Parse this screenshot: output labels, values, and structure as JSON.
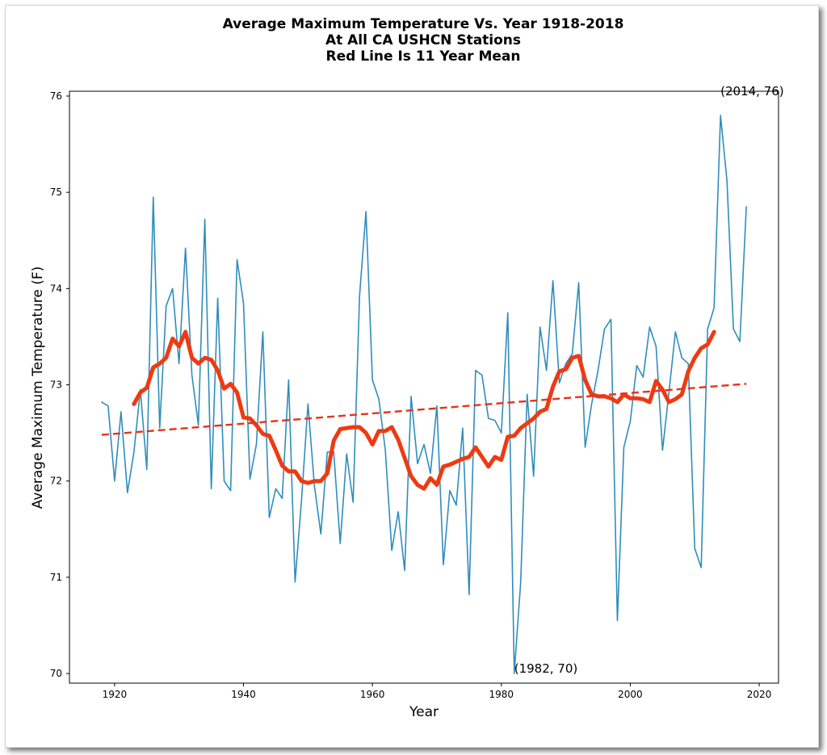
{
  "chart_data": {
    "type": "line",
    "title": [
      "Average Maximum Temperature Vs. Year 1918-2018",
      "At All CA USHCN Stations",
      "Red Line Is 11 Year Mean"
    ],
    "xlabel": "Year",
    "ylabel": "Average Maximum Temperature (F)",
    "xlim": [
      1913,
      2023
    ],
    "ylim": [
      69.9,
      76.05
    ],
    "xticks": [
      1920,
      1940,
      1960,
      1980,
      2000,
      2020
    ],
    "yticks": [
      70,
      71,
      72,
      73,
      74,
      75,
      76
    ],
    "grid": false,
    "series": [
      {
        "color": "#2f8dbd",
        "style": "solid",
        "x": [
          1918,
          1919,
          1920,
          1921,
          1922,
          1923,
          1924,
          1925,
          1926,
          1927,
          1928,
          1929,
          1930,
          1931,
          1932,
          1933,
          1934,
          1935,
          1936,
          1937,
          1938,
          1939,
          1940,
          1941,
          1942,
          1943,
          1944,
          1945,
          1946,
          1947,
          1948,
          1949,
          1950,
          1951,
          1952,
          1953,
          1954,
          1955,
          1956,
          1957,
          1958,
          1959,
          1960,
          1961,
          1962,
          1963,
          1964,
          1965,
          1966,
          1967,
          1968,
          1969,
          1970,
          1971,
          1972,
          1973,
          1974,
          1975,
          1976,
          1977,
          1978,
          1979,
          1980,
          1981,
          1982,
          1983,
          1984,
          1985,
          1986,
          1987,
          1988,
          1989,
          1990,
          1991,
          1992,
          1993,
          1994,
          1995,
          1996,
          1997,
          1998,
          1999,
          2000,
          2001,
          2002,
          2003,
          2004,
          2005,
          2006,
          2007,
          2008,
          2009,
          2010,
          2011,
          2012,
          2013,
          2014,
          2015,
          2016,
          2017,
          2018
        ],
        "y": [
          72.82,
          72.78,
          72.0,
          72.72,
          71.88,
          72.3,
          72.95,
          72.12,
          74.95,
          72.55,
          73.82,
          74.0,
          73.22,
          74.42,
          73.1,
          72.58,
          74.72,
          71.92,
          73.9,
          72.0,
          71.9,
          74.3,
          73.85,
          72.02,
          72.38,
          73.55,
          71.62,
          71.92,
          71.82,
          73.05,
          70.95,
          71.8,
          72.8,
          71.95,
          71.45,
          72.3,
          72.3,
          71.35,
          72.28,
          71.78,
          73.92,
          74.8,
          73.05,
          72.85,
          72.32,
          71.28,
          71.68,
          71.07,
          72.88,
          72.18,
          72.38,
          72.08,
          72.78,
          71.13,
          71.9,
          71.75,
          72.55,
          70.82,
          73.15,
          73.1,
          72.65,
          72.63,
          72.5,
          73.75,
          70.0,
          70.95,
          72.9,
          72.05,
          73.6,
          73.15,
          74.08,
          73.02,
          73.22,
          73.32,
          74.06,
          72.35,
          72.8,
          73.15,
          73.58,
          73.68,
          70.55,
          72.35,
          72.62,
          73.2,
          73.08,
          73.6,
          73.4,
          72.32,
          72.92,
          73.55,
          73.28,
          73.22,
          71.3,
          71.1,
          73.58,
          73.8,
          75.8,
          75.12,
          73.58,
          73.45,
          74.85
        ]
      },
      {
        "color": "#ee3a12",
        "style": "solid",
        "x": [
          1923,
          1924,
          1925,
          1926,
          1927,
          1928,
          1929,
          1930,
          1931,
          1932,
          1933,
          1934,
          1935,
          1936,
          1937,
          1938,
          1939,
          1940,
          1941,
          1942,
          1943,
          1944,
          1945,
          1946,
          1947,
          1948,
          1949,
          1950,
          1951,
          1952,
          1953,
          1954,
          1955,
          1956,
          1957,
          1958,
          1959,
          1960,
          1961,
          1962,
          1963,
          1964,
          1965,
          1966,
          1967,
          1968,
          1969,
          1970,
          1971,
          1972,
          1973,
          1974,
          1975,
          1976,
          1977,
          1978,
          1979,
          1980,
          1981,
          1982,
          1983,
          1984,
          1985,
          1986,
          1987,
          1988,
          1989,
          1990,
          1991,
          1992,
          1993,
          1994,
          1995,
          1996,
          1997,
          1998,
          1999,
          2000,
          2001,
          2002,
          2003,
          2004,
          2005,
          2006,
          2007,
          2008,
          2009,
          2010,
          2011,
          2012,
          2013
        ],
        "y": [
          72.8,
          72.92,
          72.97,
          73.18,
          73.22,
          73.28,
          73.48,
          73.4,
          73.55,
          73.28,
          73.22,
          73.28,
          73.26,
          73.15,
          72.96,
          73.01,
          72.92,
          72.66,
          72.65,
          72.58,
          72.49,
          72.47,
          72.32,
          72.16,
          72.1,
          72.1,
          72.0,
          71.98,
          72.0,
          72.0,
          72.08,
          72.42,
          72.54,
          72.55,
          72.56,
          72.56,
          72.5,
          72.38,
          72.52,
          72.52,
          72.56,
          72.43,
          72.24,
          72.05,
          71.96,
          71.92,
          72.03,
          71.96,
          72.15,
          72.17,
          72.2,
          72.23,
          72.25,
          72.35,
          72.25,
          72.15,
          72.25,
          72.22,
          72.46,
          72.47,
          72.55,
          72.6,
          72.65,
          72.72,
          72.75,
          72.98,
          73.14,
          73.16,
          73.28,
          73.3,
          73.05,
          72.9,
          72.88,
          72.88,
          72.86,
          72.82,
          72.9,
          72.86,
          72.86,
          72.85,
          72.82,
          73.04,
          72.95,
          72.82,
          72.85,
          72.9,
          73.14,
          73.28,
          73.38,
          73.42,
          73.55
        ]
      },
      {
        "color": "#e8321a",
        "style": "dashed",
        "x": [
          1918,
          2018
        ],
        "y": [
          72.48,
          73.01
        ]
      }
    ],
    "annotations": [
      {
        "text": "(2014, 76)",
        "x": 2014,
        "y": 76
      },
      {
        "text": "(1982, 70)",
        "x": 1982,
        "y": 70
      }
    ]
  }
}
